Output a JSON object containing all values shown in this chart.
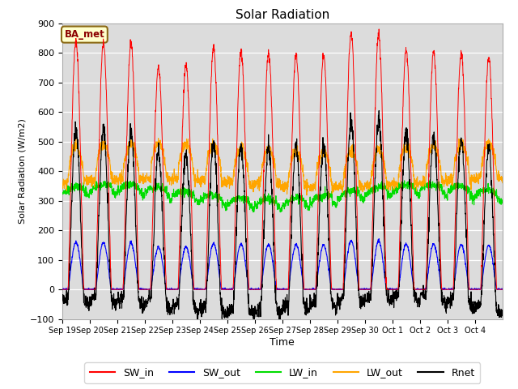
{
  "title": "Solar Radiation",
  "xlabel": "Time",
  "ylabel": "Solar Radiation (W/m2)",
  "ylim": [
    -100,
    900
  ],
  "yticks": [
    -100,
    0,
    100,
    200,
    300,
    400,
    500,
    600,
    700,
    800,
    900
  ],
  "num_days": 16,
  "station_label": "BA_met",
  "colors": {
    "SW_in": "red",
    "SW_out": "blue",
    "LW_in": "#00dd00",
    "LW_out": "orange",
    "Rnet": "black"
  },
  "xtick_labels": [
    "Sep 19",
    "Sep 20",
    "Sep 21",
    "Sep 22",
    "Sep 23",
    "Sep 24",
    "Sep 25",
    "Sep 26",
    "Sep 27",
    "Sep 28",
    "Sep 29",
    "Sep 30",
    "Oct 1",
    "Oct 2",
    "Oct 3",
    "Oct 4"
  ],
  "bg_color": "#dcdcdc",
  "fig_bg": "#ffffff"
}
